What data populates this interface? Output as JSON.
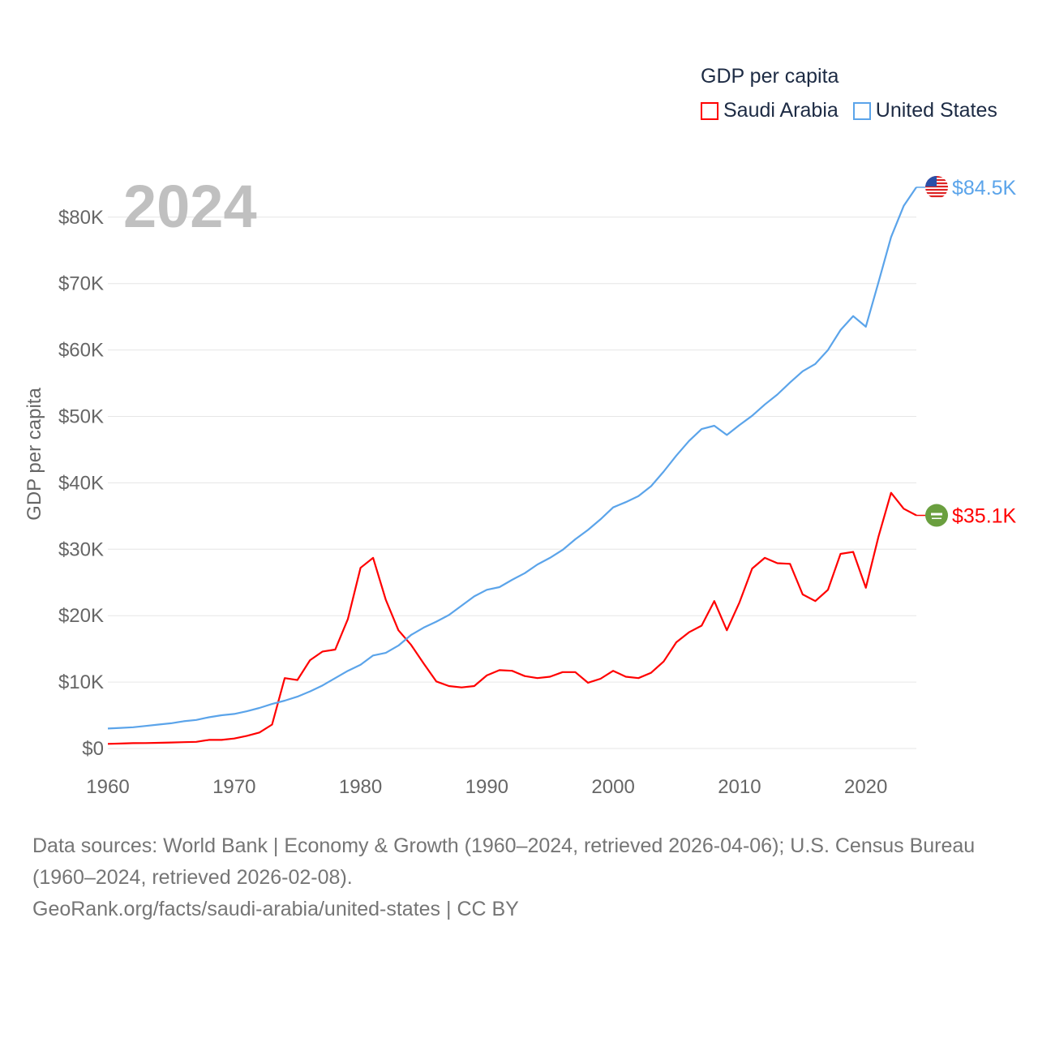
{
  "chart_data": {
    "type": "line",
    "title": "GDP per capita",
    "ylabel": "GDP per capita",
    "xlabel": "",
    "year_label": "2024",
    "xlim": [
      1960,
      2024
    ],
    "ylim": [
      0,
      85
    ],
    "x_ticks": [
      1960,
      1970,
      1980,
      1990,
      2000,
      2010,
      2020
    ],
    "y_ticks": [
      0,
      10,
      20,
      30,
      40,
      50,
      60,
      70,
      80
    ],
    "y_tick_labels": [
      "$0",
      "$10K",
      "$20K",
      "$30K",
      "$40K",
      "$50K",
      "$60K",
      "$70K",
      "$80K"
    ],
    "grid": true,
    "legend_position": "top-right",
    "x_start": 1960,
    "series": [
      {
        "name": "Saudi Arabia",
        "color": "#ff0000",
        "end_label": "$35.1K",
        "flag_color": "#6a9f3f",
        "values": [
          0.7,
          0.75,
          0.8,
          0.82,
          0.85,
          0.9,
          0.95,
          1.0,
          1.3,
          1.3,
          1.5,
          1.9,
          2.4,
          3.6,
          10.6,
          10.3,
          13.3,
          14.6,
          14.9,
          19.5,
          27.2,
          28.7,
          22.4,
          17.8,
          15.6,
          12.8,
          10.1,
          9.4,
          9.2,
          9.4,
          11.0,
          11.8,
          11.7,
          10.9,
          10.6,
          10.8,
          11.5,
          11.5,
          9.9,
          10.5,
          11.7,
          10.8,
          10.6,
          11.4,
          13.1,
          16.0,
          17.5,
          18.5,
          22.2,
          17.8,
          22.0,
          27.1,
          28.7,
          27.9,
          27.8,
          23.2,
          22.2,
          23.9,
          29.3,
          29.6,
          24.2,
          31.9,
          38.5,
          36.1,
          35.1
        ]
      },
      {
        "name": "United States",
        "color": "#5ba4ea",
        "end_label": "$84.5K",
        "values": [
          3.0,
          3.1,
          3.2,
          3.4,
          3.6,
          3.8,
          4.1,
          4.3,
          4.7,
          5.0,
          5.2,
          5.6,
          6.1,
          6.7,
          7.2,
          7.8,
          8.6,
          9.5,
          10.6,
          11.7,
          12.6,
          14.0,
          14.4,
          15.5,
          17.1,
          18.2,
          19.1,
          20.1,
          21.5,
          22.9,
          23.9,
          24.3,
          25.4,
          26.4,
          27.7,
          28.7,
          29.9,
          31.5,
          32.9,
          34.5,
          36.3,
          37.1,
          38.0,
          39.5,
          41.7,
          44.1,
          46.3,
          48.1,
          48.6,
          47.2,
          48.7,
          50.1,
          51.8,
          53.3,
          55.1,
          56.8,
          57.9,
          60.0,
          63.0,
          65.1,
          63.5,
          70.2,
          77.0,
          81.7,
          84.5
        ]
      }
    ]
  },
  "footer": {
    "sources": "Data sources: World Bank | Economy & Growth (1960–2024, retrieved 2026-04-06); U.S. Census Bureau (1960–2024, retrieved 2026-02-08).",
    "credit": "GeoRank.org/facts/saudi-arabia/united-states | CC BY"
  }
}
